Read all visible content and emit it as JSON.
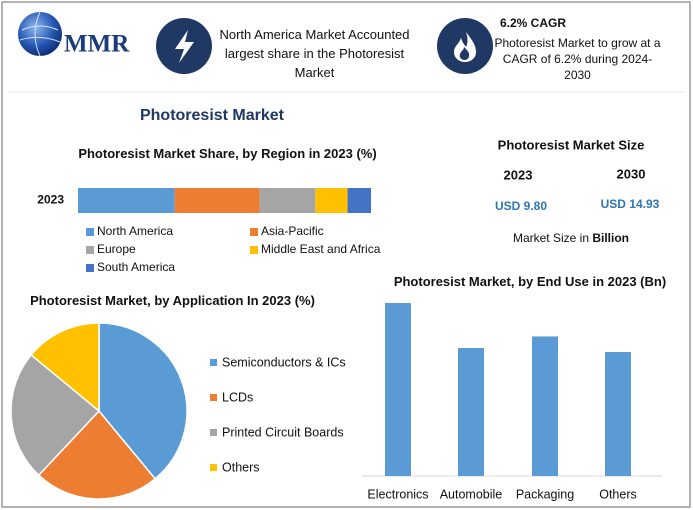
{
  "header": {
    "logo": "MMR",
    "highlight1": "North America Market Accounted largest share in the Photoresist Market",
    "highlight2_title": "6.2% CAGR",
    "highlight2_text": "Photoresist Market to grow at a CAGR of 6.2% during 2024-2030"
  },
  "title": "Photoresist Market",
  "market_size": {
    "title": "Photoresist Market Size",
    "years": [
      "2023",
      "2030"
    ],
    "values": [
      "USD 9.80",
      "USD 14.93"
    ],
    "note": "Market Size in",
    "unit": "Billion"
  },
  "chart_data": [
    {
      "type": "stacked_bar",
      "title": "Photoresist Market Share, by Region in 2023 (%)",
      "categories": [
        "2023"
      ],
      "series": [
        {
          "name": "North America",
          "color": "#5b9bd5",
          "values": [
            33
          ]
        },
        {
          "name": "Asia-Pacific",
          "color": "#ed7d31",
          "values": [
            29
          ]
        },
        {
          "name": "Europe",
          "color": "#a5a5a5",
          "values": [
            19
          ]
        },
        {
          "name": "Middle East and Africa",
          "color": "#ffc000",
          "values": [
            11
          ]
        },
        {
          "name": "South America",
          "color": "#4472c4",
          "values": [
            8
          ]
        }
      ]
    },
    {
      "type": "pie",
      "title": "Photoresist Market, by Application In 2023 (%)",
      "labels": [
        "Semiconductors & ICs",
        "LCDs",
        "Printed Circuit Boards",
        "Others"
      ],
      "values": [
        39,
        23,
        24,
        14
      ],
      "colors": [
        "#5b9bd5",
        "#ed7d31",
        "#a5a5a5",
        "#ffc000"
      ]
    },
    {
      "type": "bar",
      "title": "Photoresist Market, by End Use in 2023 (Bn)",
      "categories": [
        "Electronics",
        "Automobile",
        "Packaging",
        "Others"
      ],
      "values": [
        3.0,
        2.22,
        2.42,
        2.15
      ],
      "color": "#5b9bd5"
    }
  ]
}
